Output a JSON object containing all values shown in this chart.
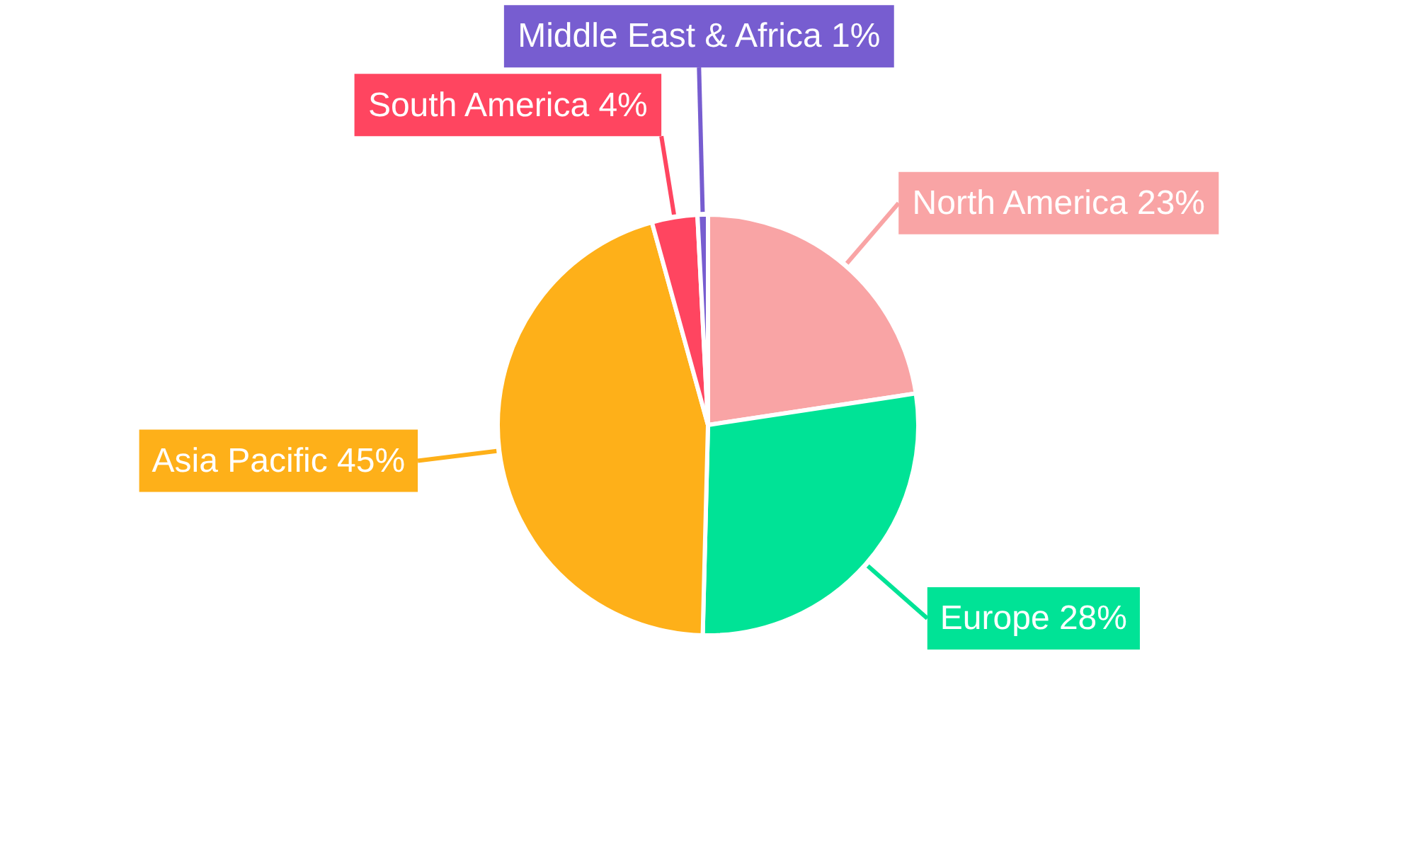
{
  "chart_data": {
    "type": "pie",
    "categories": [
      "North America",
      "Europe",
      "Asia Pacific",
      "South America",
      "Middle East & Africa"
    ],
    "values": [
      22.6,
      27.8,
      45.3,
      3.5,
      0.8
    ],
    "colors": [
      "#f9a4a5",
      "#00e396",
      "#feb019",
      "#ff4560",
      "#775dd0"
    ],
    "value_labels": [
      "23%",
      "28%",
      "45%",
      "4%",
      "1%"
    ]
  }
}
